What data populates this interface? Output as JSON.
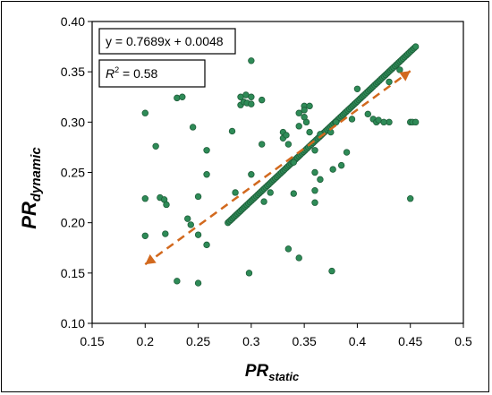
{
  "chart_data": {
    "type": "scatter",
    "xlabel": {
      "main": "PR",
      "sub": "static"
    },
    "ylabel": {
      "main": "PR",
      "sub": "dynamic"
    },
    "xlim": [
      0.15,
      0.5
    ],
    "ylim": [
      0.1,
      0.4
    ],
    "xticks": [
      "0.15",
      "0.2",
      "0.25",
      "0.3",
      "0.35",
      "0.4",
      "0.45",
      "0.5"
    ],
    "yticks": [
      "0.10",
      "0.15",
      "0.20",
      "0.25",
      "0.30",
      "0.35",
      "0.40"
    ],
    "grid": false,
    "equation": "y = 0.7689x + 0.0048",
    "r2_label": "R",
    "r2_sup": "2",
    "r2_value": " = 0.58",
    "trendline": {
      "x": [
        0.2,
        0.45
      ],
      "y": [
        0.1586,
        0.3508
      ],
      "color": "#d2691e",
      "style": "dashed"
    },
    "colors": {
      "marker_fill": "#2e8b57",
      "marker_edge": "#1f5e3a"
    },
    "points": [
      [
        0.2,
        0.309
      ],
      [
        0.2,
        0.224
      ],
      [
        0.2,
        0.187
      ],
      [
        0.21,
        0.276
      ],
      [
        0.214,
        0.225
      ],
      [
        0.218,
        0.223
      ],
      [
        0.219,
        0.189
      ],
      [
        0.22,
        0.218
      ],
      [
        0.23,
        0.324
      ],
      [
        0.235,
        0.325
      ],
      [
        0.23,
        0.142
      ],
      [
        0.24,
        0.204
      ],
      [
        0.243,
        0.198
      ],
      [
        0.245,
        0.295
      ],
      [
        0.25,
        0.226
      ],
      [
        0.25,
        0.188
      ],
      [
        0.25,
        0.14
      ],
      [
        0.258,
        0.272
      ],
      [
        0.258,
        0.248
      ],
      [
        0.258,
        0.178
      ],
      [
        0.282,
        0.291
      ],
      [
        0.285,
        0.23
      ],
      [
        0.29,
        0.325
      ],
      [
        0.29,
        0.317
      ],
      [
        0.293,
        0.32
      ],
      [
        0.295,
        0.327
      ],
      [
        0.296,
        0.319
      ],
      [
        0.3,
        0.361
      ],
      [
        0.3,
        0.325
      ],
      [
        0.3,
        0.318
      ],
      [
        0.3,
        0.248
      ],
      [
        0.298,
        0.15
      ],
      [
        0.31,
        0.322
      ],
      [
        0.31,
        0.278
      ],
      [
        0.312,
        0.221
      ],
      [
        0.318,
        0.23
      ],
      [
        0.33,
        0.29
      ],
      [
        0.33,
        0.284
      ],
      [
        0.333,
        0.287
      ],
      [
        0.335,
        0.278
      ],
      [
        0.335,
        0.174
      ],
      [
        0.34,
        0.26
      ],
      [
        0.34,
        0.229
      ],
      [
        0.345,
        0.309
      ],
      [
        0.345,
        0.296
      ],
      [
        0.345,
        0.165
      ],
      [
        0.35,
        0.316
      ],
      [
        0.35,
        0.312
      ],
      [
        0.352,
        0.3
      ],
      [
        0.35,
        0.305
      ],
      [
        0.355,
        0.316
      ],
      [
        0.355,
        0.29
      ],
      [
        0.36,
        0.272
      ],
      [
        0.36,
        0.25
      ],
      [
        0.365,
        0.288
      ],
      [
        0.365,
        0.243
      ],
      [
        0.36,
        0.22
      ],
      [
        0.36,
        0.232
      ],
      [
        0.375,
        0.29
      ],
      [
        0.377,
        0.253
      ],
      [
        0.376,
        0.152
      ],
      [
        0.38,
        0.3
      ],
      [
        0.385,
        0.257
      ],
      [
        0.39,
        0.27
      ],
      [
        0.395,
        0.303
      ],
      [
        0.4,
        0.333
      ],
      [
        0.41,
        0.308
      ],
      [
        0.415,
        0.303
      ],
      [
        0.418,
        0.3
      ],
      [
        0.42,
        0.302
      ],
      [
        0.43,
        0.3
      ],
      [
        0.425,
        0.3
      ],
      [
        0.45,
        0.3
      ],
      [
        0.452,
        0.3
      ],
      [
        0.455,
        0.3
      ],
      [
        0.45,
        0.224
      ],
      [
        0.43,
        0.34
      ],
      [
        0.44,
        0.352
      ]
    ],
    "line_points_x_range": [
      0.278,
      0.455
    ],
    "line_points_count": 120
  }
}
